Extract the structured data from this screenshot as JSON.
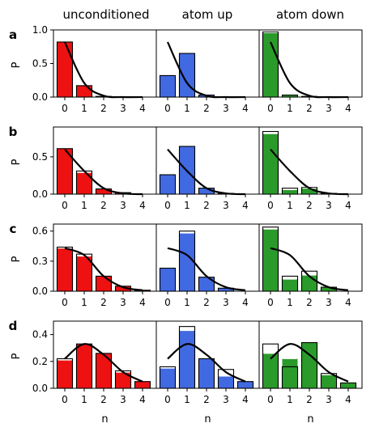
{
  "chart_data": {
    "type": "bar",
    "columns": [
      "unconditioned",
      "atom up",
      "atom down"
    ],
    "row_labels": [
      "a",
      "b",
      "c",
      "d"
    ],
    "xlabel": "n",
    "ylabel": "P",
    "categories": [
      0,
      1,
      2,
      3,
      4
    ],
    "colors": {
      "unconditioned": "#ee1111",
      "atom up": "#4169e1",
      "atom down": "#2a9a2a"
    },
    "rows": [
      {
        "label": "a",
        "ylim": [
          0,
          1.0
        ],
        "yticks": [
          0.0,
          0.5,
          1.0
        ],
        "yticklabels": [
          "0.0",
          "0.5",
          "1.0"
        ],
        "panels": [
          {
            "values": [
              0.82,
              0.17,
              0.01,
              0.0,
              0.0
            ],
            "outline": [
              0.82,
              0.17,
              0.01,
              0.0,
              0.0
            ],
            "curve": [
              0.82,
              0.21,
              0.02,
              0.0,
              0.0
            ]
          },
          {
            "values": [
              0.32,
              0.65,
              0.03,
              0.0,
              0.0
            ],
            "outline": [
              0.32,
              0.65,
              0.03,
              0.0,
              0.0
            ],
            "curve": [
              0.82,
              0.21,
              0.02,
              0.0,
              0.0
            ]
          },
          {
            "values": [
              0.96,
              0.03,
              0.01,
              0.0,
              0.0
            ],
            "outline": [
              0.97,
              0.03,
              0.01,
              0.0,
              0.0
            ],
            "curve": [
              0.82,
              0.21,
              0.02,
              0.0,
              0.0
            ]
          }
        ]
      },
      {
        "label": "b",
        "ylim": [
          0,
          0.9
        ],
        "yticks": [
          0.0,
          0.5
        ],
        "yticklabels": [
          "0.0",
          "0.5"
        ],
        "panels": [
          {
            "values": [
              0.61,
              0.29,
              0.07,
              0.02,
              0.0
            ],
            "outline": [
              0.61,
              0.31,
              0.07,
              0.02,
              0.0
            ],
            "curve": [
              0.6,
              0.31,
              0.08,
              0.01,
              0.0
            ]
          },
          {
            "values": [
              0.26,
              0.64,
              0.08,
              0.01,
              0.0
            ],
            "outline": [
              0.26,
              0.64,
              0.08,
              0.01,
              0.0
            ],
            "curve": [
              0.6,
              0.31,
              0.08,
              0.01,
              0.0
            ]
          },
          {
            "values": [
              0.81,
              0.06,
              0.08,
              0.01,
              0.0
            ],
            "outline": [
              0.84,
              0.08,
              0.09,
              0.01,
              0.0
            ],
            "curve": [
              0.6,
              0.31,
              0.08,
              0.01,
              0.0
            ]
          }
        ]
      },
      {
        "label": "c",
        "ylim": [
          0,
          0.67
        ],
        "yticks": [
          0.0,
          0.3,
          0.6
        ],
        "yticklabels": [
          "0.0",
          "0.3",
          "0.6"
        ],
        "panels": [
          {
            "values": [
              0.43,
              0.35,
              0.15,
              0.05,
              0.01
            ],
            "outline": [
              0.44,
              0.37,
              0.15,
              0.05,
              0.01
            ],
            "curve": [
              0.43,
              0.36,
              0.15,
              0.04,
              0.01
            ]
          },
          {
            "values": [
              0.23,
              0.58,
              0.14,
              0.03,
              0.0
            ],
            "outline": [
              0.23,
              0.6,
              0.14,
              0.03,
              0.0
            ],
            "curve": [
              0.43,
              0.36,
              0.15,
              0.04,
              0.01
            ]
          },
          {
            "values": [
              0.62,
              0.12,
              0.16,
              0.04,
              0.0
            ],
            "outline": [
              0.64,
              0.15,
              0.2,
              0.04,
              0.0
            ],
            "curve": [
              0.43,
              0.36,
              0.15,
              0.04,
              0.01
            ]
          }
        ]
      },
      {
        "label": "d",
        "ylim": [
          0,
          0.5
        ],
        "yticks": [
          0.0,
          0.2,
          0.4
        ],
        "yticklabels": [
          "0.0",
          "0.2",
          "0.4"
        ],
        "panels": [
          {
            "values": [
              0.21,
              0.33,
              0.26,
              0.12,
              0.05
            ],
            "outline": [
              0.22,
              0.33,
              0.26,
              0.13,
              0.05
            ],
            "curve": [
              0.22,
              0.33,
              0.25,
              0.12,
              0.05
            ]
          },
          {
            "values": [
              0.15,
              0.43,
              0.22,
              0.09,
              0.05
            ],
            "outline": [
              0.16,
              0.46,
              0.22,
              0.14,
              0.05
            ],
            "curve": [
              0.22,
              0.33,
              0.25,
              0.12,
              0.05
            ]
          },
          {
            "values": [
              0.26,
              0.22,
              0.34,
              0.1,
              0.04
            ],
            "outline": [
              0.33,
              0.16,
              0.34,
              0.11,
              0.04
            ],
            "curve": [
              0.22,
              0.33,
              0.25,
              0.12,
              0.05
            ]
          }
        ]
      }
    ]
  }
}
